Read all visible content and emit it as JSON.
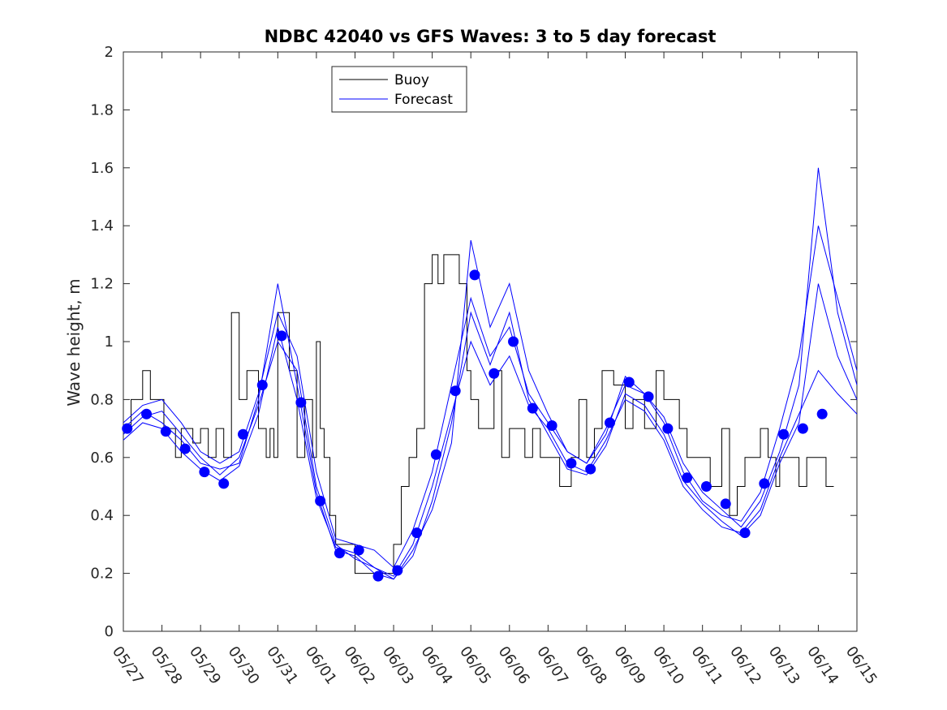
{
  "colors": {
    "buoy": "#000000",
    "forecast": "#0000ff",
    "axis": "#262626"
  },
  "chart_data": {
    "type": "line",
    "title": "NDBC 42040 vs GFS Waves: 3 to 5 day forecast",
    "xlabel": "",
    "ylabel": "Wave height, m",
    "x_ticks": [
      "05/27",
      "05/28",
      "05/29",
      "05/30",
      "05/31",
      "06/01",
      "06/02",
      "06/03",
      "06/04",
      "06/05",
      "06/06",
      "06/07",
      "06/08",
      "06/09",
      "06/10",
      "06/11",
      "06/12",
      "06/13",
      "06/14",
      "06/15"
    ],
    "xlim": [
      0,
      19
    ],
    "ylim": [
      0,
      2
    ],
    "y_ticks": [
      0,
      0.2,
      0.4,
      0.6,
      0.8,
      1,
      1.2,
      1.4,
      1.6,
      1.8,
      2
    ],
    "y_tick_labels": [
      "0",
      "0.2",
      "0.4",
      "0.6",
      "0.8",
      "1",
      "1.2",
      "1.4",
      "1.6",
      "1.8",
      "2"
    ],
    "grid": false,
    "legend": {
      "position": "top-center",
      "entries": [
        "Buoy",
        "Forecast"
      ]
    },
    "series": [
      {
        "name": "Buoy",
        "style": "step-line",
        "x": [
          0.0,
          0.2,
          0.35,
          0.5,
          0.7,
          0.9,
          1.05,
          1.2,
          1.35,
          1.5,
          1.8,
          2.0,
          2.2,
          2.4,
          2.6,
          2.8,
          3.0,
          3.2,
          3.5,
          3.7,
          3.8,
          3.9,
          4.0,
          4.3,
          4.5,
          4.7,
          4.9,
          5.0,
          5.1,
          5.2,
          5.35,
          5.5,
          5.7,
          5.9,
          6.0,
          6.2,
          6.4,
          6.6,
          6.8,
          7.0,
          7.2,
          7.4,
          7.6,
          7.8,
          8.0,
          8.15,
          8.3,
          8.5,
          8.7,
          8.9,
          9.0,
          9.2,
          9.4,
          9.6,
          9.8,
          10.0,
          10.2,
          10.4,
          10.6,
          10.8,
          11.0,
          11.3,
          11.6,
          11.8,
          12.0,
          12.2,
          12.4,
          12.7,
          13.0,
          13.2,
          13.5,
          13.8,
          14.0,
          14.2,
          14.4,
          14.6,
          14.8,
          15.0,
          15.2,
          15.5,
          15.7,
          15.9,
          16.1,
          16.3,
          16.5,
          16.7,
          16.9,
          17.0,
          17.3,
          17.5,
          17.7,
          18.0,
          18.2
        ],
        "y": [
          0.7,
          0.8,
          0.8,
          0.9,
          0.8,
          0.8,
          0.7,
          0.7,
          0.6,
          0.7,
          0.65,
          0.7,
          0.6,
          0.7,
          0.6,
          1.1,
          0.8,
          0.9,
          0.7,
          0.6,
          0.7,
          0.6,
          1.1,
          0.9,
          0.6,
          0.8,
          0.6,
          1.0,
          0.7,
          0.6,
          0.4,
          0.3,
          0.3,
          0.3,
          0.2,
          0.2,
          0.2,
          0.2,
          0.2,
          0.3,
          0.5,
          0.6,
          0.7,
          1.2,
          1.3,
          1.2,
          1.3,
          1.3,
          1.2,
          0.9,
          0.8,
          0.7,
          0.7,
          0.9,
          0.6,
          0.7,
          0.7,
          0.6,
          0.7,
          0.6,
          0.6,
          0.5,
          0.6,
          0.8,
          0.6,
          0.7,
          0.9,
          0.85,
          0.7,
          0.8,
          0.7,
          0.9,
          0.8,
          0.8,
          0.7,
          0.6,
          0.6,
          0.6,
          0.5,
          0.7,
          0.4,
          0.5,
          0.6,
          0.6,
          0.7,
          0.6,
          0.5,
          0.6,
          0.6,
          0.5,
          0.6,
          0.6,
          0.5
        ]
      },
      {
        "name": "Forecast",
        "style": "points",
        "x": [
          0.1,
          0.6,
          1.1,
          1.6,
          2.1,
          2.6,
          3.1,
          3.6,
          4.1,
          4.6,
          5.1,
          5.6,
          6.1,
          6.6,
          7.1,
          7.6,
          8.1,
          8.6,
          9.1,
          9.6,
          10.1,
          10.6,
          11.1,
          11.6,
          12.1,
          12.6,
          13.1,
          13.6,
          14.1,
          14.6,
          15.1,
          15.6,
          16.1,
          16.6,
          17.1,
          17.6,
          18.1
        ],
        "y": [
          0.7,
          0.75,
          0.69,
          0.63,
          0.55,
          0.51,
          0.68,
          0.85,
          1.02,
          0.79,
          0.45,
          0.27,
          0.28,
          0.19,
          0.21,
          0.34,
          0.61,
          0.83,
          1.23,
          0.89,
          1.0,
          0.77,
          0.71,
          0.58,
          0.56,
          0.72,
          0.86,
          0.81,
          0.7,
          0.53,
          0.5,
          0.44,
          0.34,
          0.51,
          0.68,
          0.7,
          0.75
        ]
      },
      {
        "style": "line",
        "x": [
          0.0,
          0.5,
          1.0,
          1.5,
          2.0,
          2.5,
          3.0,
          3.5,
          4.0,
          4.5,
          5.0,
          5.5,
          6.0,
          6.5,
          7.0,
          7.5,
          8.0,
          8.5,
          9.0,
          9.5,
          10.0,
          10.5,
          11.0,
          11.5,
          12.0,
          12.5,
          13.0,
          13.5,
          14.0,
          14.5,
          15.0,
          15.5,
          16.0,
          16.5,
          17.0,
          17.5,
          18.0,
          18.5,
          19.0
        ],
        "y": [
          0.72,
          0.78,
          0.8,
          0.72,
          0.62,
          0.58,
          0.62,
          0.82,
          1.1,
          0.95,
          0.55,
          0.32,
          0.3,
          0.28,
          0.22,
          0.35,
          0.55,
          0.85,
          1.15,
          0.95,
          1.05,
          0.82,
          0.72,
          0.62,
          0.58,
          0.7,
          0.85,
          0.82,
          0.72,
          0.55,
          0.45,
          0.4,
          0.38,
          0.48,
          0.7,
          0.95,
          1.4,
          1.15,
          0.9
        ]
      },
      {
        "style": "line",
        "x": [
          0.0,
          0.5,
          1.0,
          1.5,
          2.0,
          2.5,
          3.0,
          3.5,
          4.0,
          4.5,
          5.0,
          5.5,
          6.0,
          6.5,
          7.0,
          7.5,
          8.0,
          8.5,
          9.0,
          9.5,
          10.0,
          10.5,
          11.0,
          11.5,
          12.0,
          12.5,
          13.0,
          13.5,
          14.0,
          14.5,
          15.0,
          15.5,
          16.0,
          16.5,
          17.0,
          17.5,
          18.0,
          18.5,
          19.0
        ],
        "y": [
          0.68,
          0.74,
          0.76,
          0.68,
          0.6,
          0.54,
          0.6,
          0.78,
          1.0,
          0.9,
          0.5,
          0.3,
          0.25,
          0.22,
          0.19,
          0.3,
          0.5,
          0.75,
          1.0,
          0.85,
          0.95,
          0.78,
          0.7,
          0.58,
          0.55,
          0.66,
          0.8,
          0.76,
          0.66,
          0.5,
          0.42,
          0.36,
          0.34,
          0.42,
          0.6,
          0.75,
          0.9,
          0.82,
          0.75
        ]
      },
      {
        "style": "line",
        "x": [
          0.0,
          0.5,
          1.0,
          1.5,
          2.0,
          2.5,
          3.0,
          3.5,
          4.0,
          4.5,
          5.0,
          5.5,
          6.0,
          6.5,
          7.0,
          7.5,
          8.0,
          8.5,
          9.0,
          9.5,
          10.0,
          10.5,
          11.0,
          11.5,
          12.0,
          12.5,
          13.0,
          13.5,
          14.0,
          14.5,
          15.0,
          15.5,
          16.0,
          16.5,
          17.0,
          17.5,
          18.0,
          18.5,
          19.0
        ],
        "y": [
          0.7,
          0.76,
          0.72,
          0.66,
          0.58,
          0.56,
          0.58,
          0.8,
          1.2,
          0.85,
          0.48,
          0.28,
          0.26,
          0.2,
          0.18,
          0.28,
          0.42,
          0.65,
          1.35,
          1.05,
          1.2,
          0.9,
          0.75,
          0.62,
          0.58,
          0.68,
          0.88,
          0.82,
          0.74,
          0.58,
          0.48,
          0.42,
          0.36,
          0.45,
          0.62,
          0.85,
          1.6,
          1.1,
          0.85
        ]
      },
      {
        "style": "line",
        "x": [
          0.0,
          0.5,
          1.0,
          1.5,
          2.0,
          2.5,
          3.0,
          3.5,
          4.0,
          4.5,
          5.0,
          5.5,
          6.0,
          6.5,
          7.0,
          7.5,
          8.0,
          8.5,
          9.0,
          9.5,
          10.0,
          10.5,
          11.0,
          11.5,
          12.0,
          12.5,
          13.0,
          13.5,
          14.0,
          14.5,
          15.0,
          15.5,
          16.0,
          16.5,
          17.0,
          17.5,
          18.0,
          18.5,
          19.0
        ],
        "y": [
          0.66,
          0.72,
          0.7,
          0.62,
          0.56,
          0.52,
          0.57,
          0.75,
          1.05,
          0.8,
          0.46,
          0.29,
          0.27,
          0.22,
          0.18,
          0.26,
          0.45,
          0.72,
          1.1,
          0.92,
          1.1,
          0.8,
          0.68,
          0.56,
          0.54,
          0.64,
          0.82,
          0.78,
          0.68,
          0.52,
          0.44,
          0.38,
          0.33,
          0.4,
          0.58,
          0.72,
          1.2,
          0.95,
          0.8
        ]
      }
    ]
  }
}
